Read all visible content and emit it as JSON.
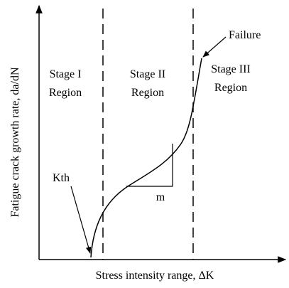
{
  "y_axis_label": "Fatigue crack growth rate, da/dN",
  "x_axis_label": "Stress intensity range, ΔK",
  "regions": [
    {
      "line1": "Stage I",
      "line2": "Region"
    },
    {
      "line1": "Stage II",
      "line2": "Region"
    },
    {
      "line1": "Stage III",
      "line2": "Region"
    }
  ],
  "annotations": {
    "threshold": "Kth",
    "slope": "m",
    "failure": "Failure"
  }
}
